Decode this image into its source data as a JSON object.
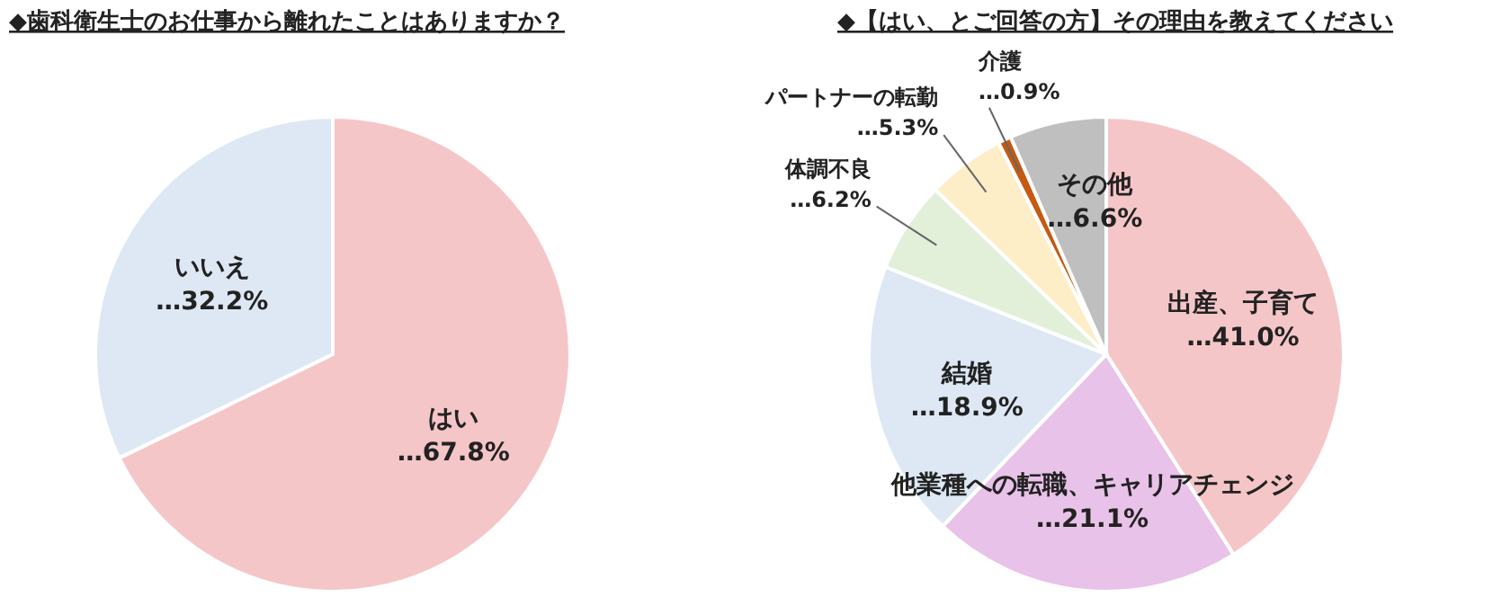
{
  "chart_data": [
    {
      "type": "pie",
      "title": "◆歯科衛生士のお仕事から離れたことはありますか？",
      "categories": [
        "はい",
        "いいえ"
      ],
      "values": [
        67.8,
        32.2
      ],
      "colors": [
        "#f5c6c8",
        "#dde8f4"
      ],
      "value_labels": [
        "…67.8%",
        "…32.2%"
      ]
    },
    {
      "type": "pie",
      "title": "◆【はい、とご回答の方】その理由を教えてください",
      "categories": [
        "出産、子育て",
        "他業種への転職、キャリアチェンジ",
        "結婚",
        "体調不良",
        "パートナーの転勤",
        "介護",
        "その他"
      ],
      "values": [
        41.0,
        21.1,
        18.9,
        6.2,
        5.3,
        0.9,
        6.6
      ],
      "colors": [
        "#f5c6c8",
        "#e8c2e8",
        "#dde8f4",
        "#e2efd9",
        "#fdeec8",
        "#c55a11",
        "#bfbfbf"
      ],
      "value_labels": [
        "…41.0%",
        "…21.1%",
        "…18.9%",
        "…6.2%",
        "…5.3%",
        "…0.9%",
        "…6.6%"
      ]
    }
  ]
}
